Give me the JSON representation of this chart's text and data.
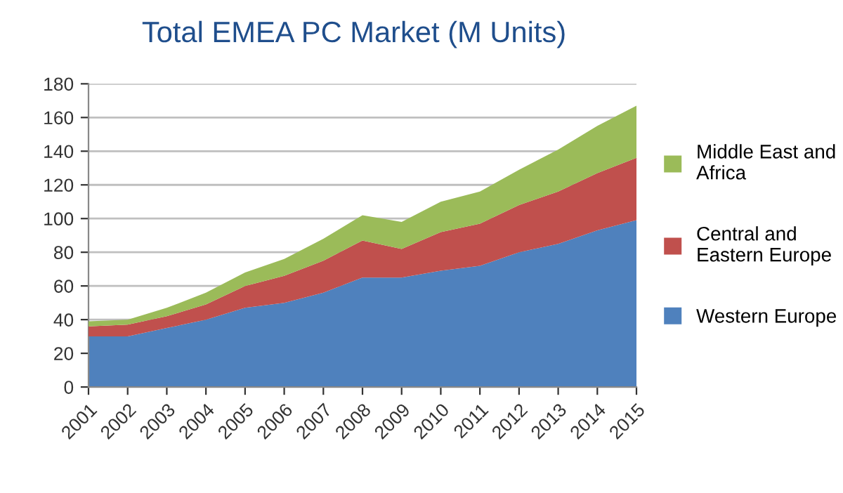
{
  "chart_data": {
    "type": "area",
    "stacked": true,
    "title": "Total EMEA PC Market (M Units)",
    "categories": [
      "2001",
      "2002",
      "2003",
      "2004",
      "2005",
      "2006",
      "2007",
      "2008",
      "2009",
      "2010",
      "2011",
      "2012",
      "2013",
      "2014",
      "2015"
    ],
    "series": [
      {
        "name": "Western Europe",
        "color": "#4f81bd",
        "values": [
          30,
          30,
          35,
          40,
          47,
          50,
          56,
          65,
          65,
          69,
          72,
          80,
          85,
          93,
          99
        ]
      },
      {
        "name": "Central and Eastern Europe",
        "color": "#c0504d",
        "values": [
          6,
          7,
          7,
          9,
          13,
          16,
          19,
          22,
          17,
          23,
          25,
          28,
          31,
          34,
          37
        ]
      },
      {
        "name": "Middle East and Africa",
        "color": "#9bbb59",
        "values": [
          3,
          3,
          5,
          7,
          8,
          10,
          13,
          15,
          16,
          18,
          19,
          21,
          25,
          28,
          31
        ]
      }
    ],
    "ylim": [
      0,
      180
    ],
    "yticks": [
      0,
      20,
      40,
      60,
      80,
      100,
      120,
      140,
      160,
      180
    ],
    "grid": "y",
    "legend": "right"
  }
}
